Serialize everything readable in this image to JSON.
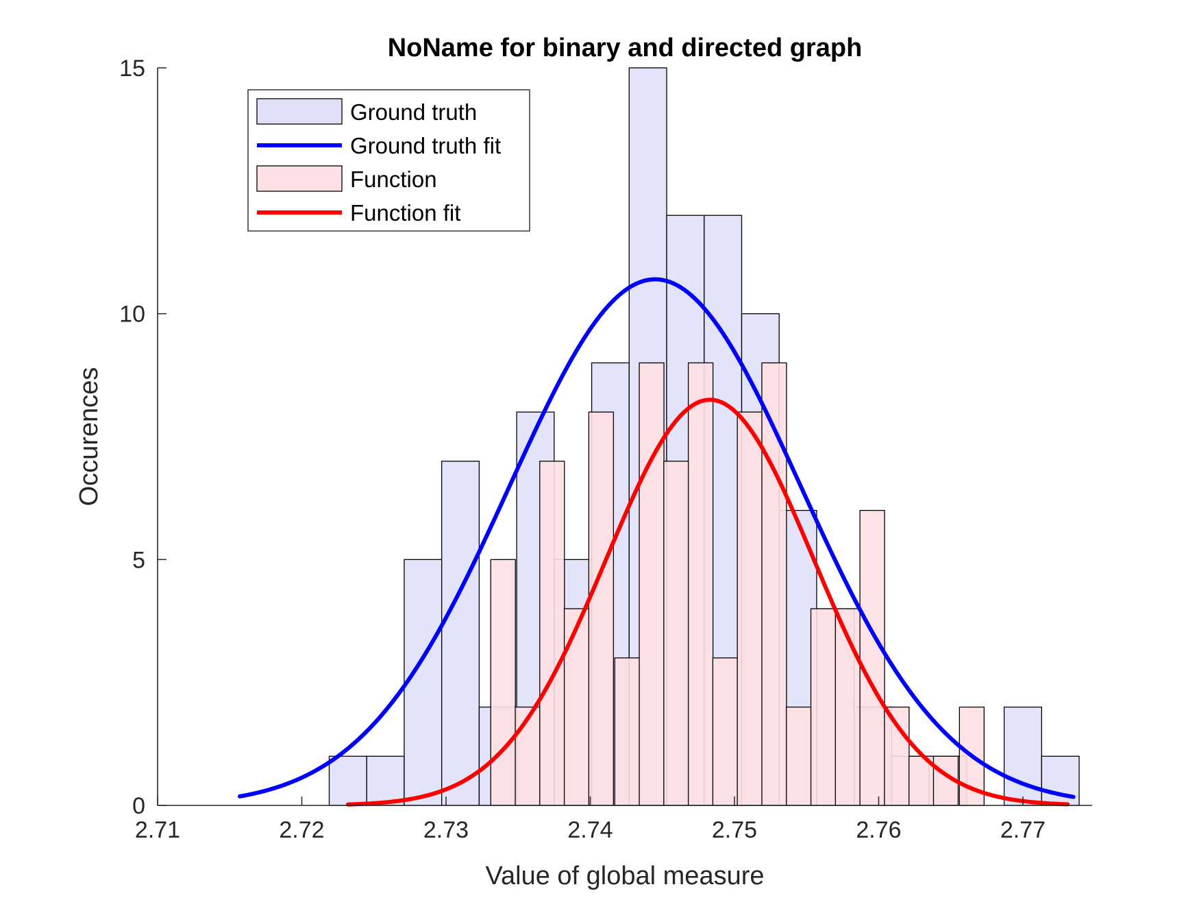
{
  "chart_data": {
    "type": "bar",
    "title": "NoName for binary and directed graph",
    "xlabel": "Value of global measure",
    "ylabel": "Occurences",
    "xlim": [
      2.71,
      2.7748
    ],
    "ylim": [
      0,
      15
    ],
    "xticks": [
      2.71,
      2.72,
      2.73,
      2.74,
      2.75,
      2.76,
      2.77
    ],
    "xtick_labels": [
      "2.71",
      "2.72",
      "2.73",
      "2.74",
      "2.75",
      "2.76",
      "2.77"
    ],
    "yticks": [
      0,
      5,
      10,
      15
    ],
    "ytick_labels": [
      "0",
      "5",
      "10",
      "15"
    ],
    "legend_position": "top-left",
    "series": [
      {
        "name": "Ground truth",
        "kind": "histogram",
        "color": "#e0e0f8",
        "bin_width": 0.0026,
        "bins": [
          {
            "x0": 2.7219,
            "count": 1
          },
          {
            "x0": 2.7245,
            "count": 1
          },
          {
            "x0": 2.7271,
            "count": 5
          },
          {
            "x0": 2.7297,
            "count": 7
          },
          {
            "x0": 2.7323,
            "count": 2
          },
          {
            "x0": 2.7349,
            "count": 8
          },
          {
            "x0": 2.7375,
            "count": 5
          },
          {
            "x0": 2.7401,
            "count": 9
          },
          {
            "x0": 2.7427,
            "count": 15
          },
          {
            "x0": 2.7453,
            "count": 12
          },
          {
            "x0": 2.7479,
            "count": 12
          },
          {
            "x0": 2.7505,
            "count": 10
          },
          {
            "x0": 2.7531,
            "count": 6
          },
          {
            "x0": 2.7557,
            "count": 4
          },
          {
            "x0": 2.7583,
            "count": 2
          },
          {
            "x0": 2.7609,
            "count": 1
          },
          {
            "x0": 2.7635,
            "count": 1
          },
          {
            "x0": 2.7661,
            "count": 0
          },
          {
            "x0": 2.7687,
            "count": 2
          },
          {
            "x0": 2.7713,
            "count": 1
          }
        ]
      },
      {
        "name": "Ground truth fit",
        "kind": "normal-fit",
        "color": "#0000ff",
        "mean": 2.7445,
        "peak": 10.7,
        "sigma": 0.0101,
        "x_range": [
          2.7157,
          2.7735
        ]
      },
      {
        "name": "Function",
        "kind": "histogram",
        "color": "#fde0e3",
        "bin_width": 0.00171,
        "bins": [
          {
            "x0": 2.7331,
            "count": 5
          },
          {
            "x0": 2.7348,
            "count": 2
          },
          {
            "x0": 2.7365,
            "count": 7
          },
          {
            "x0": 2.7382,
            "count": 4
          },
          {
            "x0": 2.7399,
            "count": 8
          },
          {
            "x0": 2.7417,
            "count": 3
          },
          {
            "x0": 2.7434,
            "count": 9
          },
          {
            "x0": 2.7451,
            "count": 7
          },
          {
            "x0": 2.7468,
            "count": 9
          },
          {
            "x0": 2.7485,
            "count": 3
          },
          {
            "x0": 2.7502,
            "count": 8
          },
          {
            "x0": 2.7519,
            "count": 9
          },
          {
            "x0": 2.7536,
            "count": 2
          },
          {
            "x0": 2.7553,
            "count": 4
          },
          {
            "x0": 2.757,
            "count": 4
          },
          {
            "x0": 2.7587,
            "count": 6
          },
          {
            "x0": 2.7604,
            "count": 2
          },
          {
            "x0": 2.7621,
            "count": 1
          },
          {
            "x0": 2.7638,
            "count": 1
          },
          {
            "x0": 2.7656,
            "count": 2
          }
        ]
      },
      {
        "name": "Function fit",
        "kind": "normal-fit",
        "color": "#ff0000",
        "mean": 2.7483,
        "peak": 8.25,
        "sigma": 0.0072,
        "x_range": [
          2.7232,
          2.7731
        ]
      }
    ]
  }
}
